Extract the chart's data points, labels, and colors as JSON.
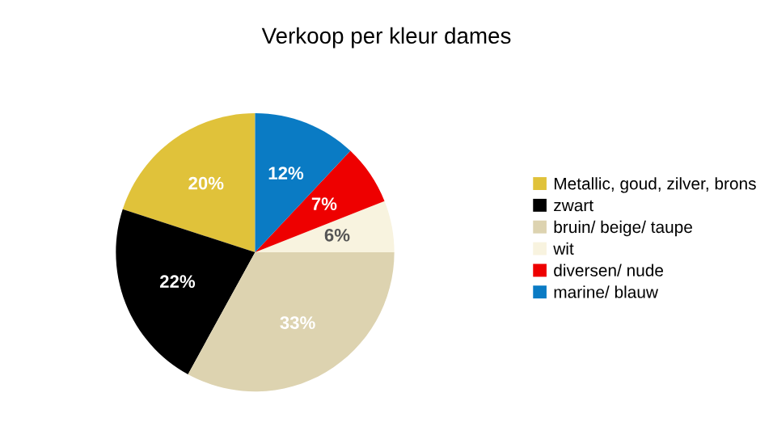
{
  "chart_data": {
    "type": "pie",
    "title": "Verkoop per kleur dames",
    "categories": [
      "Metallic, goud, zilver, brons",
      "zwart",
      "bruin/ beige/ taupe",
      "wit",
      "diversen/ nude",
      "marine/ blauw"
    ],
    "values": [
      20,
      22,
      33,
      6,
      7,
      12
    ],
    "value_labels": [
      "20%",
      "22%",
      "33%",
      "6%",
      "7%",
      "12%"
    ],
    "colors": [
      "#e0c23a",
      "#000000",
      "#ddd3b0",
      "#f8f3df",
      "#ee0000",
      "#0a7bc4"
    ],
    "legend": "right"
  }
}
